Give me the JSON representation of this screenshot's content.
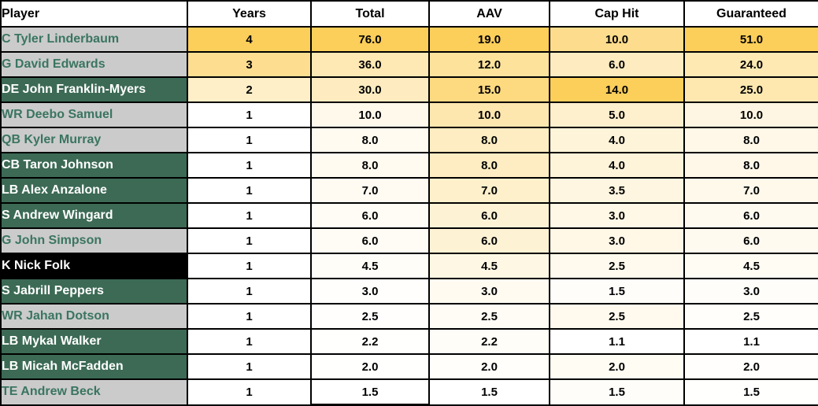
{
  "table": {
    "columns": [
      "Player",
      "Years",
      "Total",
      "AAV",
      "Cap Hit",
      "Guaranteed"
    ],
    "rows": [
      {
        "player": "C Tyler Linderbaum",
        "style": "gray",
        "years": 4,
        "total": 76.0,
        "aav": 19.0,
        "cap_hit": 10.0,
        "guaranteed": 51.0
      },
      {
        "player": "G David Edwards",
        "style": "gray",
        "years": 3,
        "total": 36.0,
        "aav": 12.0,
        "cap_hit": 6.0,
        "guaranteed": 24.0
      },
      {
        "player": "DE John Franklin-Myers",
        "style": "green",
        "years": 2,
        "total": 30.0,
        "aav": 15.0,
        "cap_hit": 14.0,
        "guaranteed": 25.0
      },
      {
        "player": "WR Deebo Samuel",
        "style": "gray",
        "years": 1,
        "total": 10.0,
        "aav": 10.0,
        "cap_hit": 5.0,
        "guaranteed": 10.0
      },
      {
        "player": "QB Kyler Murray",
        "style": "gray",
        "years": 1,
        "total": 8.0,
        "aav": 8.0,
        "cap_hit": 4.0,
        "guaranteed": 8.0
      },
      {
        "player": "CB Taron Johnson",
        "style": "green",
        "years": 1,
        "total": 8.0,
        "aav": 8.0,
        "cap_hit": 4.0,
        "guaranteed": 8.0
      },
      {
        "player": "LB Alex Anzalone",
        "style": "green",
        "years": 1,
        "total": 7.0,
        "aav": 7.0,
        "cap_hit": 3.5,
        "guaranteed": 7.0
      },
      {
        "player": "S Andrew Wingard",
        "style": "green",
        "years": 1,
        "total": 6.0,
        "aav": 6.0,
        "cap_hit": 3.0,
        "guaranteed": 6.0
      },
      {
        "player": "G John Simpson",
        "style": "gray",
        "years": 1,
        "total": 6.0,
        "aav": 6.0,
        "cap_hit": 3.0,
        "guaranteed": 6.0
      },
      {
        "player": "K Nick Folk",
        "style": "black",
        "years": 1,
        "total": 4.5,
        "aav": 4.5,
        "cap_hit": 2.5,
        "guaranteed": 4.5
      },
      {
        "player": "S Jabrill Peppers",
        "style": "green",
        "years": 1,
        "total": 3.0,
        "aav": 3.0,
        "cap_hit": 1.5,
        "guaranteed": 3.0
      },
      {
        "player": "WR Jahan Dotson",
        "style": "gray",
        "years": 1,
        "total": 2.5,
        "aav": 2.5,
        "cap_hit": 2.5,
        "guaranteed": 2.5
      },
      {
        "player": "LB Mykal Walker",
        "style": "green",
        "years": 1,
        "total": 2.2,
        "aav": 2.2,
        "cap_hit": 1.1,
        "guaranteed": 1.1
      },
      {
        "player": "LB Micah McFadden",
        "style": "green",
        "years": 1,
        "total": 2.0,
        "aav": 2.0,
        "cap_hit": 2.0,
        "guaranteed": 2.0
      },
      {
        "player": "TE Andrew Beck",
        "style": "gray",
        "years": 1,
        "total": 1.5,
        "aav": 1.5,
        "cap_hit": 1.5,
        "guaranteed": 1.5
      }
    ]
  },
  "colors": {
    "grid": "#000000",
    "header_bg": "#FFFFFF",
    "header_text": "#000000",
    "heat_min": "#FFFFFF",
    "heat_max": "#FCCE5A",
    "row_gray_bg": "#CBCBCB",
    "row_gray_text": "#3A7560",
    "row_green_bg": "#3C6A55",
    "row_green_text": "#FFFFFF",
    "row_black_bg": "#000000",
    "row_black_text": "#FFFFFF"
  }
}
